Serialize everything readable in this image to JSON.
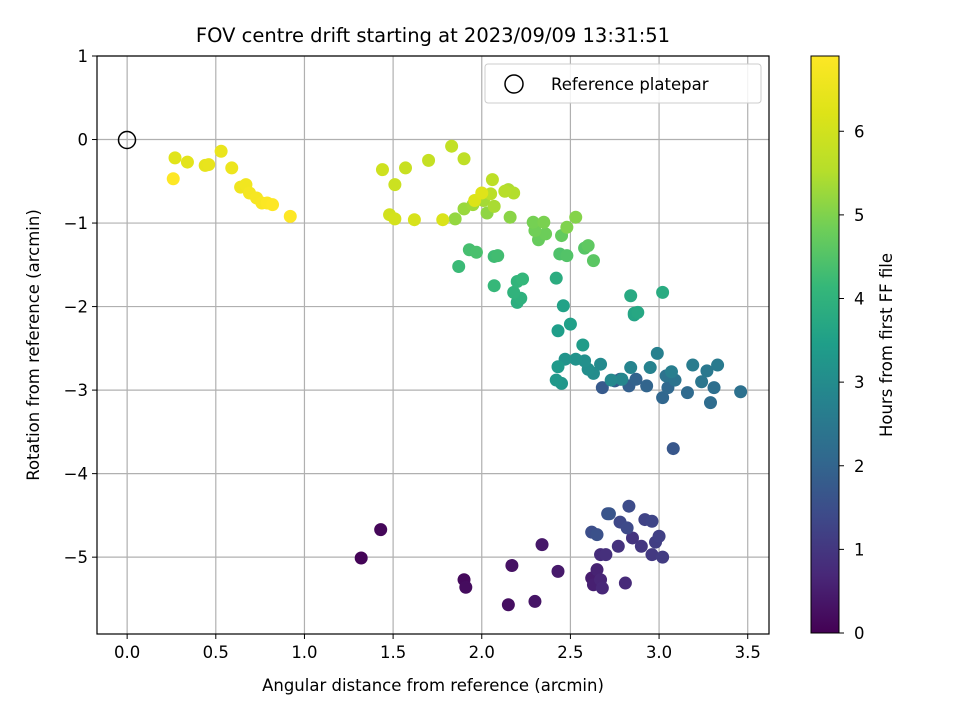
{
  "chart_data": {
    "type": "scatter",
    "title": "FOV centre drift starting at 2023/09/09 13:31:51",
    "xlabel": "Angular distance from reference (arcmin)",
    "ylabel": "Rotation from reference (arcmin)",
    "xlim": [
      -0.17,
      3.62
    ],
    "ylim": [
      -5.92,
      1.0
    ],
    "x_ticks": [
      "0.0",
      "0.5",
      "1.0",
      "1.5",
      "2.0",
      "2.5",
      "3.0",
      "3.5"
    ],
    "y_ticks": [
      "1",
      "0",
      "−1",
      "−2",
      "−3",
      "−4",
      "−5"
    ],
    "y_tick_values": [
      1,
      0,
      -1,
      -2,
      -3,
      -4,
      -5
    ],
    "grid": true,
    "legend": {
      "position": "top-right",
      "entries": [
        "Reference platepar"
      ]
    },
    "colorbar": {
      "label": "Hours from first FF file",
      "colormap": "viridis",
      "range": [
        0,
        6.9
      ],
      "ticks": [
        "0",
        "1",
        "2",
        "3",
        "4",
        "5",
        "6"
      ],
      "tick_values": [
        0,
        1,
        2,
        3,
        4,
        5,
        6
      ]
    },
    "reference": {
      "x": 0,
      "y": 0,
      "label": "Reference platepar"
    },
    "points": [
      [
        1.32,
        -5.01,
        0.05
      ],
      [
        1.43,
        -4.67,
        0.1
      ],
      [
        1.9,
        -5.27,
        0.15
      ],
      [
        1.91,
        -5.36,
        0.2
      ],
      [
        2.15,
        -5.57,
        0.25
      ],
      [
        2.17,
        -5.1,
        0.3
      ],
      [
        2.3,
        -5.53,
        0.35
      ],
      [
        2.34,
        -4.85,
        0.4
      ],
      [
        2.43,
        -5.17,
        0.45
      ],
      [
        2.62,
        -5.25,
        0.5
      ],
      [
        2.63,
        -5.33,
        0.55
      ],
      [
        2.65,
        -5.15,
        0.6
      ],
      [
        2.67,
        -5.27,
        0.65
      ],
      [
        2.68,
        -5.37,
        0.7
      ],
      [
        2.81,
        -5.31,
        0.75
      ],
      [
        2.67,
        -4.97,
        0.8
      ],
      [
        2.7,
        -4.97,
        0.85
      ],
      [
        2.77,
        -4.87,
        0.9
      ],
      [
        2.85,
        -4.77,
        0.95
      ],
      [
        2.9,
        -4.87,
        1.0
      ],
      [
        2.96,
        -4.97,
        1.05
      ],
      [
        3.02,
        -5.0,
        1.1
      ],
      [
        2.98,
        -4.82,
        1.15
      ],
      [
        3.0,
        -4.75,
        1.2
      ],
      [
        2.92,
        -4.55,
        1.25
      ],
      [
        2.96,
        -4.57,
        1.3
      ],
      [
        2.78,
        -4.58,
        1.35
      ],
      [
        2.82,
        -4.65,
        1.4
      ],
      [
        2.83,
        -4.39,
        1.45
      ],
      [
        2.62,
        -4.7,
        1.5
      ],
      [
        2.65,
        -4.73,
        1.55
      ],
      [
        2.71,
        -4.48,
        1.6
      ],
      [
        2.72,
        -4.48,
        1.65
      ],
      [
        3.08,
        -3.7,
        1.7
      ],
      [
        2.68,
        -2.97,
        1.75
      ],
      [
        2.75,
        -2.89,
        1.8
      ],
      [
        2.78,
        -2.87,
        1.85
      ],
      [
        2.83,
        -2.95,
        1.9
      ],
      [
        2.87,
        -2.87,
        1.95
      ],
      [
        2.93,
        -2.95,
        2.0
      ],
      [
        3.02,
        -3.09,
        2.05
      ],
      [
        3.05,
        -2.97,
        2.1
      ],
      [
        3.16,
        -3.03,
        2.15
      ],
      [
        3.29,
        -3.15,
        2.2
      ],
      [
        3.31,
        -2.97,
        2.25
      ],
      [
        3.46,
        -3.02,
        2.3
      ],
      [
        3.04,
        -2.83,
        2.35
      ],
      [
        3.09,
        -2.88,
        2.4
      ],
      [
        3.24,
        -2.9,
        2.45
      ],
      [
        3.27,
        -2.77,
        2.5
      ],
      [
        3.33,
        -2.7,
        2.55
      ],
      [
        3.19,
        -2.7,
        2.6
      ],
      [
        3.07,
        -2.78,
        2.65
      ],
      [
        2.99,
        -2.56,
        2.7
      ],
      [
        2.95,
        -2.73,
        2.75
      ],
      [
        2.84,
        -2.73,
        2.8
      ],
      [
        2.79,
        -2.87,
        2.85
      ],
      [
        2.73,
        -2.88,
        2.9
      ],
      [
        2.67,
        -2.69,
        2.95
      ],
      [
        2.63,
        -2.8,
        3.0
      ],
      [
        2.6,
        -2.75,
        3.05
      ],
      [
        2.58,
        -2.65,
        3.1
      ],
      [
        2.53,
        -2.63,
        3.15
      ],
      [
        2.47,
        -2.63,
        3.2
      ],
      [
        2.45,
        -2.92,
        3.25
      ],
      [
        2.42,
        -2.88,
        3.3
      ],
      [
        2.43,
        -2.72,
        3.35
      ],
      [
        2.57,
        -2.46,
        3.4
      ],
      [
        2.43,
        -2.29,
        3.45
      ],
      [
        2.5,
        -2.21,
        3.5
      ],
      [
        2.46,
        -1.99,
        3.55
      ],
      [
        2.86,
        -2.1,
        3.6
      ],
      [
        2.86,
        -2.08,
        3.65
      ],
      [
        2.88,
        -2.07,
        3.7
      ],
      [
        2.84,
        -1.87,
        3.75
      ],
      [
        3.02,
        -1.83,
        3.8
      ],
      [
        2.42,
        -1.66,
        3.85
      ],
      [
        2.2,
        -1.95,
        3.9
      ],
      [
        2.22,
        -1.9,
        3.95
      ],
      [
        2.18,
        -1.83,
        4.0
      ],
      [
        2.2,
        -1.7,
        4.05
      ],
      [
        2.23,
        -1.67,
        4.1
      ],
      [
        2.07,
        -1.75,
        4.15
      ],
      [
        1.87,
        -1.52,
        4.2
      ],
      [
        2.07,
        -1.4,
        4.25
      ],
      [
        2.09,
        -1.39,
        4.3
      ],
      [
        1.93,
        -1.32,
        4.35
      ],
      [
        1.97,
        -1.35,
        4.4
      ],
      [
        2.44,
        -1.37,
        4.45
      ],
      [
        2.48,
        -1.39,
        4.5
      ],
      [
        2.58,
        -1.3,
        4.55
      ],
      [
        2.63,
        -1.45,
        4.6
      ],
      [
        2.6,
        -1.27,
        4.65
      ],
      [
        2.45,
        -1.15,
        4.7
      ],
      [
        2.32,
        -1.2,
        4.75
      ],
      [
        2.36,
        -1.13,
        4.8
      ],
      [
        2.3,
        -1.09,
        4.85
      ],
      [
        2.29,
        -0.99,
        4.9
      ],
      [
        2.35,
        -0.99,
        4.95
      ],
      [
        2.48,
        -1.05,
        5.0
      ],
      [
        2.53,
        -0.93,
        5.05
      ],
      [
        2.16,
        -0.93,
        5.1
      ],
      [
        2.03,
        -0.88,
        5.15
      ],
      [
        1.85,
        -0.95,
        5.2
      ],
      [
        1.9,
        -0.83,
        5.25
      ],
      [
        1.95,
        -0.78,
        5.3
      ],
      [
        2.01,
        -0.73,
        5.35
      ],
      [
        2.07,
        -0.8,
        5.4
      ],
      [
        2.15,
        -0.6,
        5.45
      ],
      [
        2.18,
        -0.64,
        5.5
      ],
      [
        2.13,
        -0.62,
        5.55
      ],
      [
        2.05,
        -0.65,
        5.6
      ],
      [
        2.06,
        -0.48,
        5.65
      ],
      [
        1.9,
        -0.23,
        5.7
      ],
      [
        1.83,
        -0.08,
        5.75
      ],
      [
        1.7,
        -0.25,
        5.8
      ],
      [
        1.57,
        -0.34,
        5.85
      ],
      [
        1.51,
        -0.54,
        5.9
      ],
      [
        1.44,
        -0.36,
        5.95
      ],
      [
        1.48,
        -0.9,
        6.0
      ],
      [
        1.51,
        -0.95,
        6.05
      ],
      [
        1.62,
        -0.96,
        6.1
      ],
      [
        1.78,
        -0.96,
        6.15
      ],
      [
        1.96,
        -0.73,
        6.2
      ],
      [
        2.0,
        -0.64,
        6.25
      ],
      [
        0.27,
        -0.22,
        6.3
      ],
      [
        0.34,
        -0.27,
        6.35
      ],
      [
        0.44,
        -0.31,
        6.4
      ],
      [
        0.46,
        -0.3,
        6.45
      ],
      [
        0.53,
        -0.14,
        6.5
      ],
      [
        0.59,
        -0.34,
        6.55
      ],
      [
        0.64,
        -0.57,
        6.6
      ],
      [
        0.67,
        -0.54,
        6.65
      ],
      [
        0.69,
        -0.64,
        6.7
      ],
      [
        0.73,
        -0.7,
        6.75
      ],
      [
        0.76,
        -0.76,
        6.8
      ],
      [
        0.79,
        -0.76,
        6.85
      ],
      [
        0.82,
        -0.78,
        6.9
      ],
      [
        0.92,
        -0.92,
        6.95
      ],
      [
        0.26,
        -0.47,
        7.0
      ]
    ]
  }
}
